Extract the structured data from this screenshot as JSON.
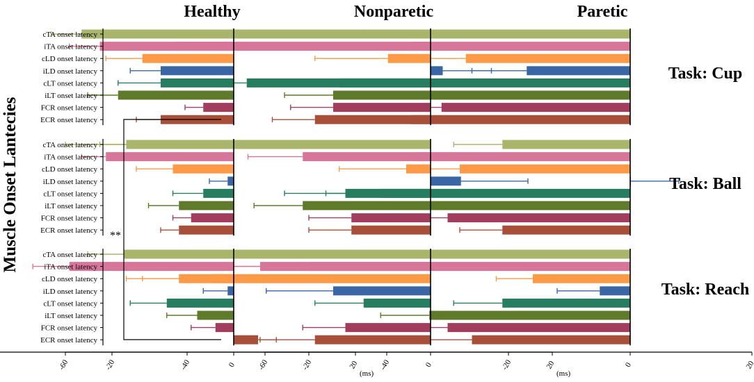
{
  "chart_data": {
    "type": "bar",
    "orientation": "horizontal",
    "ylabel": "Muscle Onset Lantecies",
    "xunit": "(ms)",
    "xlim": [
      -60,
      20
    ],
    "xticks": [
      -60,
      -40,
      -20,
      0,
      20
    ],
    "categories": [
      "cTA onset latency",
      "iTA onset latency",
      "cLD onset latency",
      "iLD onset latency",
      "cLT onset latency",
      "iLT onset latency",
      "FCR onset latency",
      "ECR onset latency"
    ],
    "colors": [
      "#a9b56a",
      "#d8769a",
      "#fd9a48",
      "#3a66a5",
      "#277d60",
      "#5f7a2a",
      "#a23d5e",
      "#a84f3a"
    ],
    "groups": [
      "Healthy",
      "Nonparetic",
      "Paretic"
    ],
    "tasks": [
      "Task: Cup",
      "Task: Ball",
      "Task: Reach"
    ],
    "significance": "**",
    "panels": [
      {
        "group": "Healthy",
        "task": "Task: Cup",
        "values": [
          -25,
          -22,
          -15,
          -12,
          -12,
          -19,
          -5,
          -12
        ],
        "errors": [
          5,
          5,
          6,
          5,
          7,
          5,
          3,
          4
        ]
      },
      {
        "group": "Healthy",
        "task": "Task: Ball",
        "values": [
          -17,
          -21,
          -10,
          -1,
          -5,
          -9,
          -7,
          -9
        ],
        "errors": [
          5,
          4,
          6,
          3,
          5,
          5,
          3,
          3
        ]
      },
      {
        "group": "Healthy",
        "task": "Task: Reach",
        "values": [
          -18,
          -27,
          -9,
          -1,
          -11,
          -6,
          -3,
          4
        ],
        "errors": [
          6,
          6,
          6,
          4,
          6,
          5,
          4,
          3
        ]
      },
      {
        "group": "Nonparetic",
        "task": "Task: Cup",
        "values": [
          -37,
          -42,
          -7,
          2,
          -15,
          -16,
          -16,
          -19
        ],
        "errors": [
          9,
          10,
          12,
          8,
          8,
          8,
          7,
          7
        ]
      },
      {
        "group": "Nonparetic",
        "task": "Task: Ball",
        "values": [
          -50,
          -21,
          -4,
          5,
          -14,
          -21,
          -13,
          -13
        ],
        "errors": [
          10,
          9,
          11,
          11,
          10,
          8,
          7,
          7
        ]
      },
      {
        "group": "Nonparetic",
        "task": "Task: Reach",
        "values": [
          -37,
          -28,
          -36,
          -16,
          -11,
          10,
          -14,
          -19
        ],
        "errors": [
          11,
          10,
          14,
          11,
          8,
          5,
          7,
          9
        ]
      },
      {
        "group": "Paretic",
        "task": "Task: Cup",
        "values": [
          -33,
          -36,
          -27,
          -17,
          -63,
          -40,
          -31,
          -36
        ],
        "errors": [
          11,
          11,
          8,
          9,
          8,
          8,
          11,
          9
        ]
      },
      {
        "group": "Paretic",
        "task": "Task: Ball",
        "values": [
          -21,
          -35,
          -28,
          0,
          -41,
          -36,
          -30,
          -21
        ],
        "errors": [
          8,
          10,
          8,
          8,
          9,
          6,
          8,
          7
        ]
      },
      {
        "group": "Paretic",
        "task": "Task: Reach",
        "values": [
          -43,
          -53,
          -16,
          -5,
          -21,
          -33,
          -30,
          -26
        ],
        "errors": [
          9,
          13,
          6,
          7,
          8,
          8,
          9,
          9
        ]
      }
    ]
  }
}
